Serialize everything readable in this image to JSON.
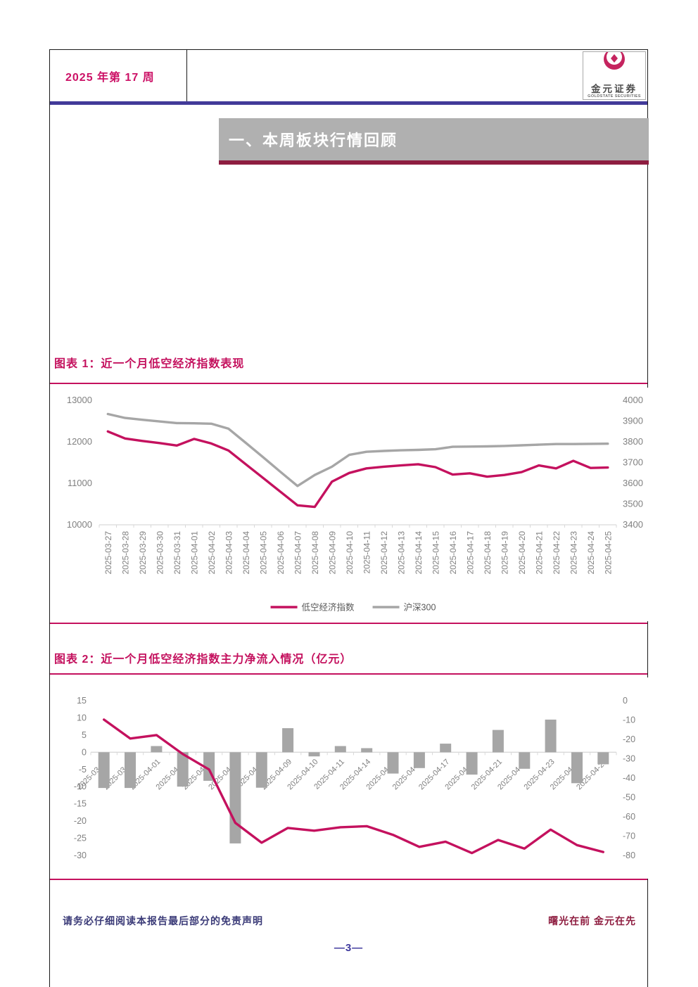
{
  "page": {
    "header": {
      "issue": "2025 年第 17 周",
      "logo_cn": "金元证券",
      "logo_en": "GOLDSTATE SECURITIES"
    },
    "section": {
      "title": "一、本周板块行情回顾"
    },
    "footer": {
      "disclaimer": "请务必仔细阅读本报告最后部分的免责声明",
      "slogan": "曙光在前 金元在先",
      "page_number": "—3—"
    }
  },
  "colors": {
    "accent_crimson": "#C4115E",
    "series_gray": "#A6A6A6",
    "banner_gray": "#B0B0B0",
    "banner_rule_darkred": "#8E1D40",
    "header_rule_navy": "#423A99",
    "axis_text_gray": "#808080",
    "axis_line_gray": "#D9D9D9",
    "legend_text_gray": "#595959",
    "footer_navy": "#3B3B78",
    "page_number_blue": "#3F3A9E",
    "logo_pink": "#C5245F"
  },
  "chart_data": [
    {
      "type": "line",
      "title": "图表 1：近一个月低空经济指数表现",
      "categories": [
        "2025-03-27",
        "2025-03-28",
        "2025-03-29",
        "2025-03-30",
        "2025-03-31",
        "2025-04-01",
        "2025-04-02",
        "2025-04-03",
        "2025-04-04",
        "2025-04-05",
        "2025-04-06",
        "2025-04-07",
        "2025-04-08",
        "2025-04-09",
        "2025-04-10",
        "2025-04-11",
        "2025-04-12",
        "2025-04-13",
        "2025-04-14",
        "2025-04-15",
        "2025-04-16",
        "2025-04-17",
        "2025-04-18",
        "2025-04-19",
        "2025-04-20",
        "2025-04-21",
        "2025-04-22",
        "2025-04-23",
        "2025-04-24",
        "2025-04-25"
      ],
      "series": [
        {
          "name": "低空经济指数",
          "axis": "left",
          "color": "#C4115E",
          "values": [
            12250,
            12080,
            12020,
            11970,
            11910,
            12070,
            11960,
            11790,
            11460,
            11130,
            10800,
            10470,
            10430,
            11040,
            11250,
            11360,
            11400,
            11430,
            11460,
            11390,
            11210,
            11240,
            11160,
            11200,
            11270,
            11430,
            11360,
            11540,
            11370,
            11380
          ]
        },
        {
          "name": "沪深300",
          "axis": "right",
          "color": "#A6A6A6",
          "values": [
            3934,
            3915,
            3906,
            3898,
            3890,
            3889,
            3887,
            3863,
            3795,
            3726,
            3656,
            3587,
            3640,
            3680,
            3737,
            3752,
            3756,
            3759,
            3761,
            3764,
            3776,
            3777,
            3778,
            3780,
            3783,
            3786,
            3789,
            3789,
            3790,
            3791
          ]
        }
      ],
      "left_axis": {
        "min": 10000,
        "max": 13000,
        "ticks": [
          10000,
          11000,
          12000,
          13000
        ]
      },
      "right_axis": {
        "min": 3400,
        "max": 4000,
        "ticks": [
          3400,
          3500,
          3600,
          3700,
          3800,
          3900,
          4000
        ]
      },
      "legend_position": "bottom",
      "grid": false
    },
    {
      "type": "bar+line",
      "title": "图表 2：近一个月低空经济指数主力净流入情况（亿元）",
      "categories": [
        "2025-03-28",
        "2025-03-31",
        "2025-04-01",
        "2025-04-02",
        "2025-04-03",
        "2025-04-07",
        "2025-04-08",
        "2025-04-09",
        "2025-04-10",
        "2025-04-11",
        "2025-04-14",
        "2025-04-15",
        "2025-04-16",
        "2025-04-17",
        "2025-04-18",
        "2025-04-21",
        "2025-04-22",
        "2025-04-23",
        "2025-04-24",
        "2025-04-25"
      ],
      "bars": {
        "axis": "left",
        "color": "#A6A6A6",
        "values": [
          -10.4,
          -10.4,
          1.8,
          -10.0,
          -8.3,
          -26.5,
          -10.3,
          7.0,
          -1.2,
          1.8,
          1.2,
          -6.2,
          -4.6,
          2.5,
          -6.5,
          6.5,
          -4.8,
          9.5,
          -9.0,
          -3.5
        ]
      },
      "line": {
        "axis": "left",
        "color": "#C4115E",
        "values": [
          9.5,
          4.0,
          5.0,
          -0.5,
          -5.0,
          -20.5,
          -26.3,
          -22.0,
          -22.8,
          -21.8,
          -21.5,
          -24.0,
          -27.5,
          -26.0,
          -29.3,
          -25.5,
          -28.0,
          -22.5,
          -27.0,
          -29.0
        ]
      },
      "left_axis": {
        "min": -30,
        "max": 15,
        "ticks": [
          15,
          10,
          5,
          0,
          -5,
          -10,
          -15,
          -20,
          -25,
          -30
        ]
      },
      "right_axis": {
        "min": -80,
        "max": 0,
        "ticks": [
          0,
          -10,
          -20,
          -30,
          -40,
          -50,
          -60,
          -70,
          -80
        ]
      },
      "legend_position": "none",
      "grid": false
    }
  ]
}
